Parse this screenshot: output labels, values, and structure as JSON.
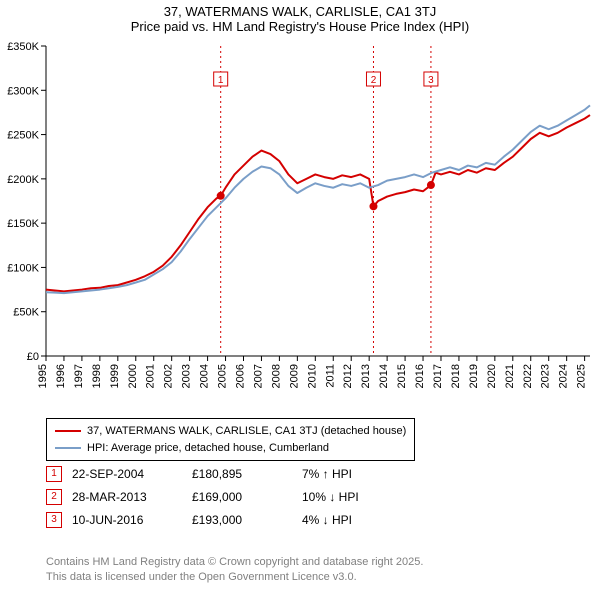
{
  "title_line1": "37, WATERMANS WALK, CARLISLE, CA1 3TJ",
  "title_line2": "Price paid vs. HM Land Registry's House Price Index (HPI)",
  "chart": {
    "type": "line",
    "background_color": "#ffffff",
    "axis_color": "#000000",
    "font_size_axis": 11,
    "x_years": [
      1995,
      1996,
      1997,
      1998,
      1999,
      2000,
      2001,
      2002,
      2003,
      2004,
      2005,
      2006,
      2007,
      2008,
      2009,
      2010,
      2011,
      2012,
      2013,
      2014,
      2015,
      2016,
      2017,
      2018,
      2019,
      2020,
      2021,
      2022,
      2023,
      2024,
      2025
    ],
    "ylim": [
      0,
      350000
    ],
    "ytick_step": 50000,
    "ytick_labels": [
      "£0",
      "£50K",
      "£100K",
      "£150K",
      "£200K",
      "£250K",
      "£300K",
      "£350K"
    ],
    "vlines": [
      {
        "x": 2004.73,
        "label": "1",
        "color": "#d40000"
      },
      {
        "x": 2013.24,
        "label": "2",
        "color": "#d40000"
      },
      {
        "x": 2016.44,
        "label": "3",
        "color": "#d40000"
      }
    ],
    "series": [
      {
        "name": "37, WATERMANS WALK, CARLISLE, CA1 3TJ (detached house)",
        "color": "#d40000",
        "line_width": 2,
        "data": [
          [
            1995.0,
            75000
          ],
          [
            1995.5,
            74000
          ],
          [
            1996.0,
            73000
          ],
          [
            1996.5,
            74000
          ],
          [
            1997.0,
            75000
          ],
          [
            1997.5,
            76500
          ],
          [
            1998.0,
            77000
          ],
          [
            1998.5,
            79000
          ],
          [
            1999.0,
            80000
          ],
          [
            1999.5,
            83000
          ],
          [
            2000.0,
            86000
          ],
          [
            2000.5,
            90000
          ],
          [
            2001.0,
            95000
          ],
          [
            2001.5,
            102000
          ],
          [
            2002.0,
            112000
          ],
          [
            2002.5,
            125000
          ],
          [
            2003.0,
            140000
          ],
          [
            2003.5,
            155000
          ],
          [
            2004.0,
            168000
          ],
          [
            2004.5,
            178000
          ],
          [
            2004.73,
            180895
          ],
          [
            2005.0,
            190000
          ],
          [
            2005.5,
            205000
          ],
          [
            2006.0,
            215000
          ],
          [
            2006.5,
            225000
          ],
          [
            2007.0,
            232000
          ],
          [
            2007.5,
            228000
          ],
          [
            2008.0,
            220000
          ],
          [
            2008.5,
            205000
          ],
          [
            2009.0,
            195000
          ],
          [
            2009.5,
            200000
          ],
          [
            2010.0,
            205000
          ],
          [
            2010.5,
            202000
          ],
          [
            2011.0,
            200000
          ],
          [
            2011.5,
            204000
          ],
          [
            2012.0,
            202000
          ],
          [
            2012.5,
            205000
          ],
          [
            2013.0,
            200000
          ],
          [
            2013.24,
            169000
          ],
          [
            2013.5,
            175000
          ],
          [
            2014.0,
            180000
          ],
          [
            2014.5,
            183000
          ],
          [
            2015.0,
            185000
          ],
          [
            2015.5,
            188000
          ],
          [
            2016.0,
            186000
          ],
          [
            2016.44,
            193000
          ],
          [
            2016.7,
            207000
          ],
          [
            2017.0,
            205000
          ],
          [
            2017.5,
            208000
          ],
          [
            2018.0,
            205000
          ],
          [
            2018.5,
            210000
          ],
          [
            2019.0,
            207000
          ],
          [
            2019.5,
            212000
          ],
          [
            2020.0,
            210000
          ],
          [
            2020.5,
            218000
          ],
          [
            2021.0,
            225000
          ],
          [
            2021.5,
            235000
          ],
          [
            2022.0,
            245000
          ],
          [
            2022.5,
            252000
          ],
          [
            2023.0,
            248000
          ],
          [
            2023.5,
            252000
          ],
          [
            2024.0,
            258000
          ],
          [
            2024.5,
            263000
          ],
          [
            2025.0,
            268000
          ],
          [
            2025.3,
            272000
          ]
        ]
      },
      {
        "name": "HPI: Average price, detached house, Cumberland",
        "color": "#7a9ec8",
        "line_width": 2,
        "data": [
          [
            1995.0,
            72000
          ],
          [
            1995.5,
            71500
          ],
          [
            1996.0,
            71000
          ],
          [
            1996.5,
            72000
          ],
          [
            1997.0,
            73000
          ],
          [
            1997.5,
            74000
          ],
          [
            1998.0,
            75000
          ],
          [
            1998.5,
            76500
          ],
          [
            1999.0,
            78000
          ],
          [
            1999.5,
            80000
          ],
          [
            2000.0,
            83000
          ],
          [
            2000.5,
            86000
          ],
          [
            2001.0,
            92000
          ],
          [
            2001.5,
            98000
          ],
          [
            2002.0,
            106000
          ],
          [
            2002.5,
            118000
          ],
          [
            2003.0,
            132000
          ],
          [
            2003.5,
            145000
          ],
          [
            2004.0,
            158000
          ],
          [
            2004.5,
            168000
          ],
          [
            2005.0,
            178000
          ],
          [
            2005.5,
            190000
          ],
          [
            2006.0,
            200000
          ],
          [
            2006.5,
            208000
          ],
          [
            2007.0,
            214000
          ],
          [
            2007.5,
            212000
          ],
          [
            2008.0,
            205000
          ],
          [
            2008.5,
            192000
          ],
          [
            2009.0,
            184000
          ],
          [
            2009.5,
            190000
          ],
          [
            2010.0,
            195000
          ],
          [
            2010.5,
            192000
          ],
          [
            2011.0,
            190000
          ],
          [
            2011.5,
            194000
          ],
          [
            2012.0,
            192000
          ],
          [
            2012.5,
            195000
          ],
          [
            2013.0,
            190000
          ],
          [
            2013.5,
            193000
          ],
          [
            2014.0,
            198000
          ],
          [
            2014.5,
            200000
          ],
          [
            2015.0,
            202000
          ],
          [
            2015.5,
            205000
          ],
          [
            2016.0,
            202000
          ],
          [
            2016.5,
            207000
          ],
          [
            2017.0,
            210000
          ],
          [
            2017.5,
            213000
          ],
          [
            2018.0,
            210000
          ],
          [
            2018.5,
            215000
          ],
          [
            2019.0,
            213000
          ],
          [
            2019.5,
            218000
          ],
          [
            2020.0,
            216000
          ],
          [
            2020.5,
            225000
          ],
          [
            2021.0,
            233000
          ],
          [
            2021.5,
            243000
          ],
          [
            2022.0,
            253000
          ],
          [
            2022.5,
            260000
          ],
          [
            2023.0,
            256000
          ],
          [
            2023.5,
            260000
          ],
          [
            2024.0,
            266000
          ],
          [
            2024.5,
            272000
          ],
          [
            2025.0,
            278000
          ],
          [
            2025.3,
            283000
          ]
        ]
      }
    ],
    "sale_points": {
      "color": "#d40000",
      "radius": 4,
      "points": [
        {
          "x": 2004.73,
          "y": 180895
        },
        {
          "x": 2013.24,
          "y": 169000
        },
        {
          "x": 2016.44,
          "y": 193000
        }
      ]
    }
  },
  "legend": {
    "items": [
      {
        "color": "#d40000",
        "label": "37, WATERMANS WALK, CARLISLE, CA1 3TJ (detached house)"
      },
      {
        "color": "#7a9ec8",
        "label": "HPI: Average price, detached house, Cumberland"
      }
    ]
  },
  "events": [
    {
      "marker": "1",
      "date": "22-SEP-2004",
      "price": "£180,895",
      "delta": "7% ↑ HPI"
    },
    {
      "marker": "2",
      "date": "28-MAR-2013",
      "price": "£169,000",
      "delta": "10% ↓ HPI"
    },
    {
      "marker": "3",
      "date": "10-JUN-2016",
      "price": "£193,000",
      "delta": "4% ↓ HPI"
    }
  ],
  "attribution": {
    "line1": "Contains HM Land Registry data © Crown copyright and database right 2025.",
    "line2": "This data is licensed under the Open Government Licence v3.0."
  },
  "event_marker_border": "#d40000"
}
